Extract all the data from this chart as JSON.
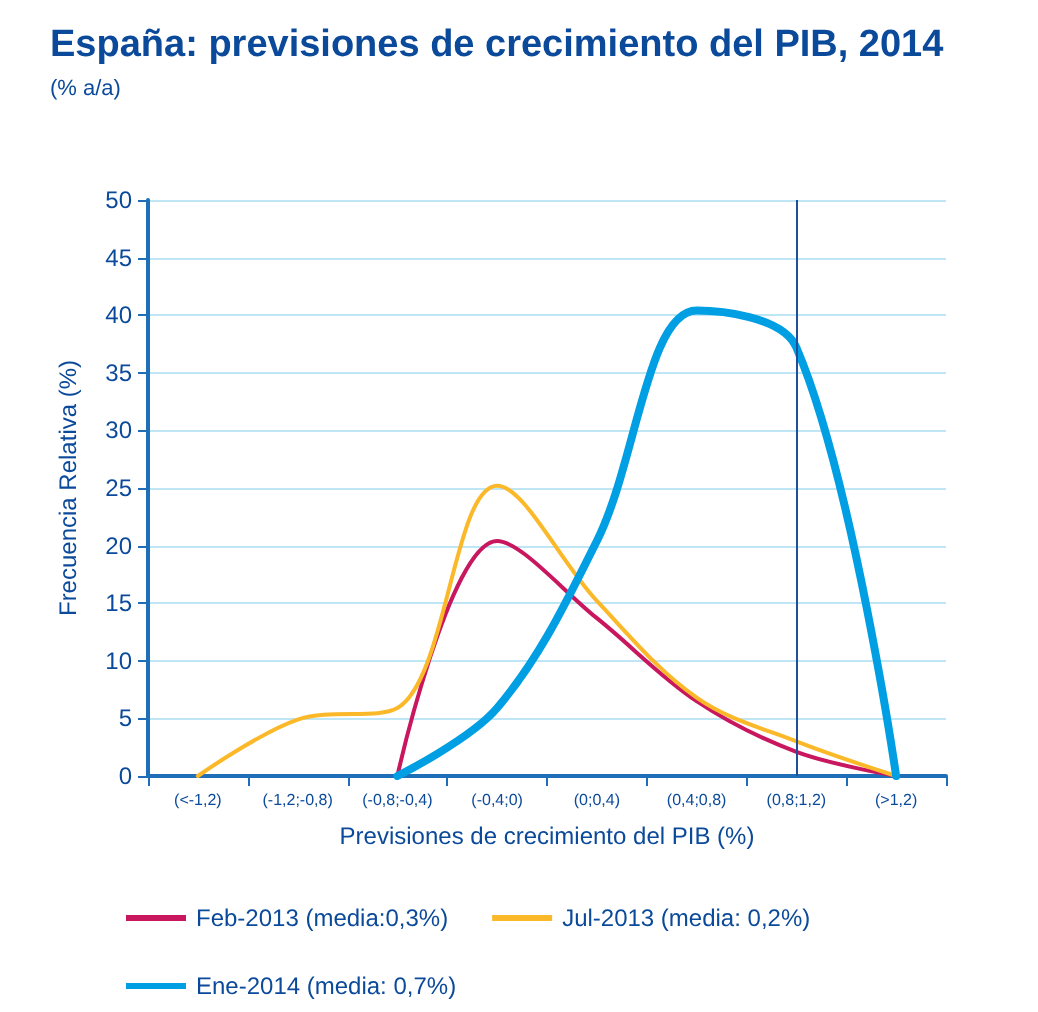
{
  "chart_data": {
    "type": "line",
    "title": "España: previsiones de crecimiento del PIB, 2014",
    "subtitle": "(% a/a)",
    "xlabel": "Previsiones de crecimiento del PIB (%)",
    "ylabel": "Frecuencia Relativa (%)",
    "categories": [
      "(<-1,2)",
      "(-1,2;-0,8)",
      "(-0,8;-0,4)",
      "(-0,4;0)",
      "(0;0,4)",
      "(0,4;0,8)",
      "(0,8;1,2)",
      "(>1,2)"
    ],
    "series": [
      {
        "name": "Feb-2013 (media:0,3%)",
        "color": "#c8175e",
        "values": [
          null,
          null,
          0,
          20.4,
          13.7,
          6.5,
          2.1,
          0
        ]
      },
      {
        "name": "Jul-2013 (media: 0,2%)",
        "color": "#fbb829",
        "values": [
          0,
          4.9,
          5.9,
          25.2,
          15.2,
          6.8,
          3,
          0
        ]
      },
      {
        "name": "Ene-2014 (media: 0,7%)",
        "color": "#009fe3",
        "values": [
          null,
          null,
          0,
          5.9,
          20.4,
          40.4,
          37.2,
          0
        ]
      }
    ],
    "ref_lines": [
      {
        "axis": "x",
        "value": "(0,8;1,2)",
        "color": "#1f4e9a"
      }
    ],
    "ylim": [
      0,
      50
    ],
    "yticks": [
      0,
      5,
      10,
      15,
      20,
      25,
      30,
      35,
      40,
      45,
      50
    ],
    "grid": "y",
    "legend": "bottom",
    "marker": "none",
    "line_style": "solid"
  }
}
